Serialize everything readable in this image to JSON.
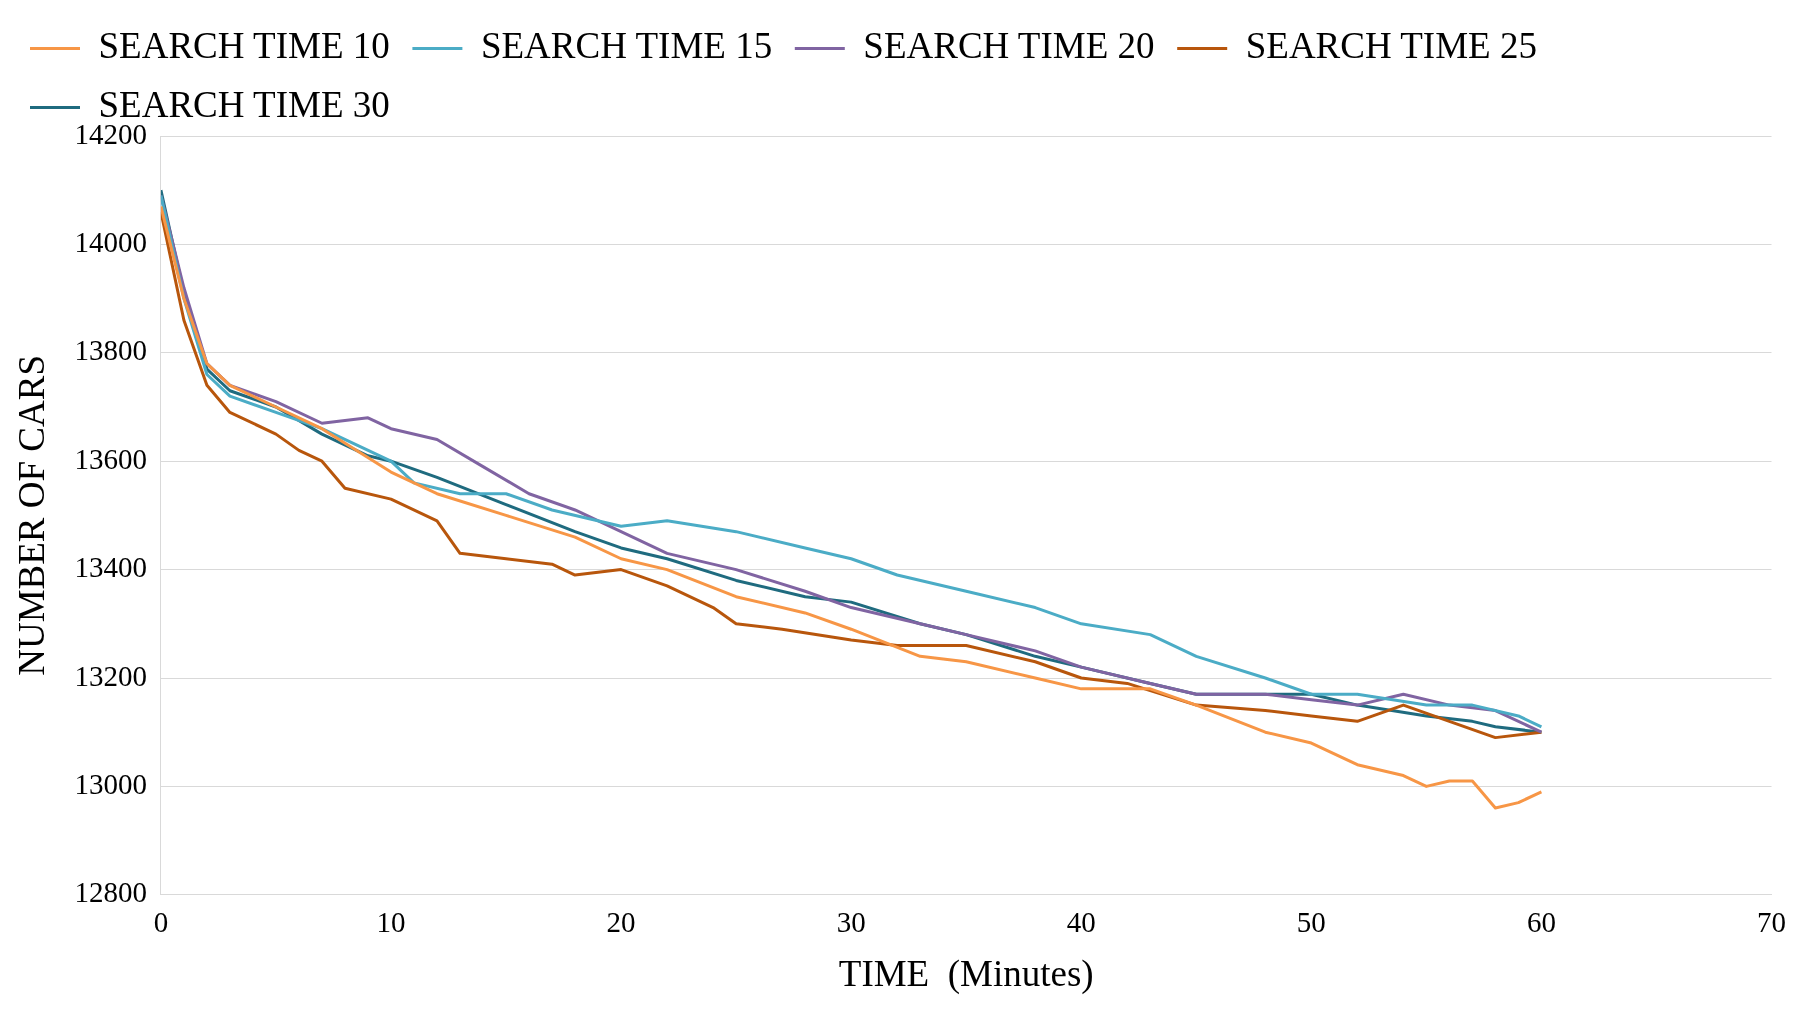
{
  "chart_data": {
    "type": "line",
    "xlabel": "TIME  (Minutes)",
    "ylabel": "NUMBER OF CARS",
    "xlim": [
      0,
      70
    ],
    "xticks": [
      0,
      10,
      20,
      30,
      40,
      50,
      60,
      70
    ],
    "ylim": [
      12800,
      14200
    ],
    "yticks": [
      12800,
      13000,
      13200,
      13400,
      13600,
      13800,
      14000,
      14200
    ],
    "grid": "y",
    "legend": "top",
    "marker": "none",
    "line_style": "solid",
    "series": [
      {
        "name": "SEARCH TIME 10",
        "color": "#f79646",
        "x": [
          0,
          1,
          2,
          3,
          5,
          7,
          10,
          12,
          15,
          18,
          20,
          22,
          25,
          28,
          30,
          33,
          35,
          38,
          40,
          43,
          45,
          48,
          50,
          52,
          54,
          55,
          56,
          57,
          58,
          59,
          60
        ],
        "values": [
          14070,
          13900,
          13780,
          13740,
          13700,
          13660,
          13580,
          13540,
          13500,
          13460,
          13420,
          13400,
          13350,
          13320,
          13290,
          13240,
          13230,
          13200,
          13180,
          13180,
          13150,
          13100,
          13080,
          13040,
          13020,
          13000,
          13010,
          13010,
          12960,
          12970,
          12990
        ]
      },
      {
        "name": "SEARCH TIME 15",
        "color": "#4bacc6",
        "x": [
          0,
          1,
          2,
          3,
          5,
          7,
          10,
          11,
          13,
          15,
          17,
          20,
          22,
          25,
          28,
          30,
          32,
          35,
          38,
          40,
          43,
          45,
          48,
          50,
          52,
          55,
          57,
          59,
          60
        ],
        "values": [
          14090,
          13900,
          13760,
          13720,
          13690,
          13660,
          13600,
          13560,
          13540,
          13540,
          13510,
          13480,
          13490,
          13470,
          13440,
          13420,
          13390,
          13360,
          13330,
          13300,
          13280,
          13240,
          13200,
          13170,
          13170,
          13150,
          13150,
          13130,
          13110
        ]
      },
      {
        "name": "SEARCH TIME 20",
        "color": "#8064a2",
        "x": [
          0,
          1,
          2,
          3,
          5,
          7,
          9,
          10,
          12,
          14,
          16,
          18,
          20,
          22,
          25,
          28,
          30,
          33,
          35,
          38,
          40,
          43,
          45,
          48,
          50,
          52,
          54,
          56,
          58,
          60
        ],
        "values": [
          14090,
          13920,
          13780,
          13740,
          13710,
          13670,
          13680,
          13660,
          13640,
          13590,
          13540,
          13510,
          13470,
          13430,
          13400,
          13360,
          13330,
          13300,
          13280,
          13250,
          13220,
          13190,
          13170,
          13170,
          13160,
          13150,
          13170,
          13150,
          13140,
          13100
        ]
      },
      {
        "name": "SEARCH TIME 25",
        "color": "#b8560c",
        "x": [
          0,
          1,
          2,
          3,
          5,
          6,
          7,
          8,
          10,
          12,
          13,
          15,
          17,
          18,
          20,
          22,
          24,
          25,
          27,
          30,
          32,
          35,
          38,
          40,
          42,
          45,
          48,
          50,
          52,
          54,
          56,
          58,
          60
        ],
        "values": [
          14060,
          13860,
          13740,
          13690,
          13650,
          13620,
          13600,
          13550,
          13530,
          13490,
          13430,
          13420,
          13410,
          13390,
          13400,
          13370,
          13330,
          13300,
          13290,
          13270,
          13260,
          13260,
          13230,
          13200,
          13190,
          13150,
          13140,
          13130,
          13120,
          13150,
          13120,
          13090,
          13100
        ]
      },
      {
        "name": "SEARCH TIME 30",
        "color": "#1f6b7f",
        "x": [
          0,
          1,
          2,
          3,
          5,
          7,
          9,
          10,
          12,
          15,
          18,
          20,
          22,
          25,
          28,
          30,
          33,
          35,
          38,
          40,
          43,
          45,
          48,
          50,
          52,
          55,
          57,
          58,
          60
        ],
        "values": [
          14100,
          13910,
          13770,
          13730,
          13700,
          13650,
          13610,
          13600,
          13570,
          13520,
          13470,
          13440,
          13420,
          13380,
          13350,
          13340,
          13300,
          13280,
          13240,
          13220,
          13190,
          13170,
          13170,
          13170,
          13150,
          13130,
          13120,
          13110,
          13100
        ]
      }
    ]
  }
}
